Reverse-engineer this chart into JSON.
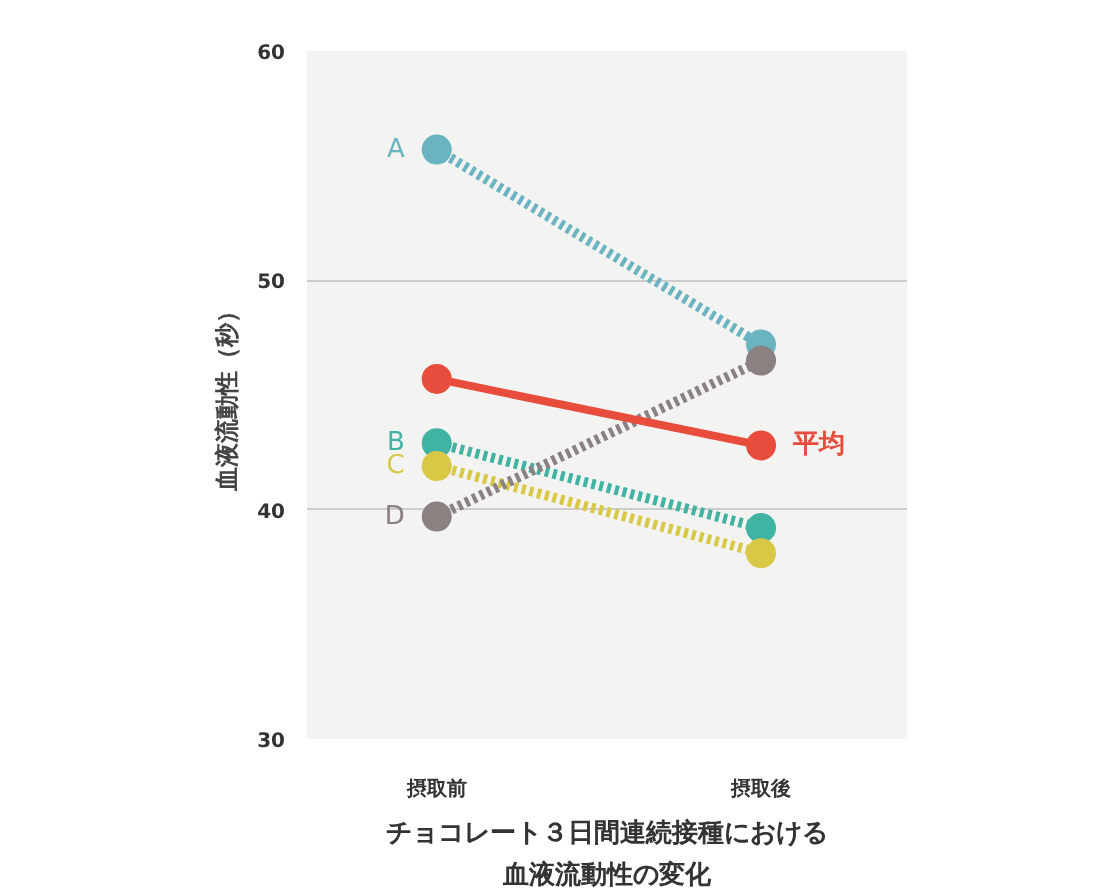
{
  "chart_data": {
    "type": "line",
    "title": "チョコレート３日間連続接種における",
    "subtitle": "血液流動性の変化",
    "ylabel": "血液流動性（秒）",
    "categories": [
      "摂取前",
      "摂取後"
    ],
    "series": [
      {
        "name": "A",
        "color": "#6ab4c2",
        "values": [
          55.7,
          47.2
        ],
        "line_style": "dotted"
      },
      {
        "name": "B",
        "color": "#41b3a3",
        "values": [
          42.9,
          39.2
        ],
        "line_style": "dotted"
      },
      {
        "name": "C",
        "color": "#d9c845",
        "values": [
          41.9,
          38.1
        ],
        "line_style": "dotted"
      },
      {
        "name": "D",
        "color": "#8a8180",
        "values": [
          39.7,
          46.5
        ],
        "line_style": "dotted"
      },
      {
        "name": "平均",
        "color": "#e84c3d",
        "values": [
          45.7,
          42.8
        ],
        "line_style": "solid"
      }
    ],
    "ylim": [
      30,
      60
    ],
    "yticks": [
      30,
      40,
      50,
      60
    ],
    "grid": "y",
    "marker": "circle"
  }
}
